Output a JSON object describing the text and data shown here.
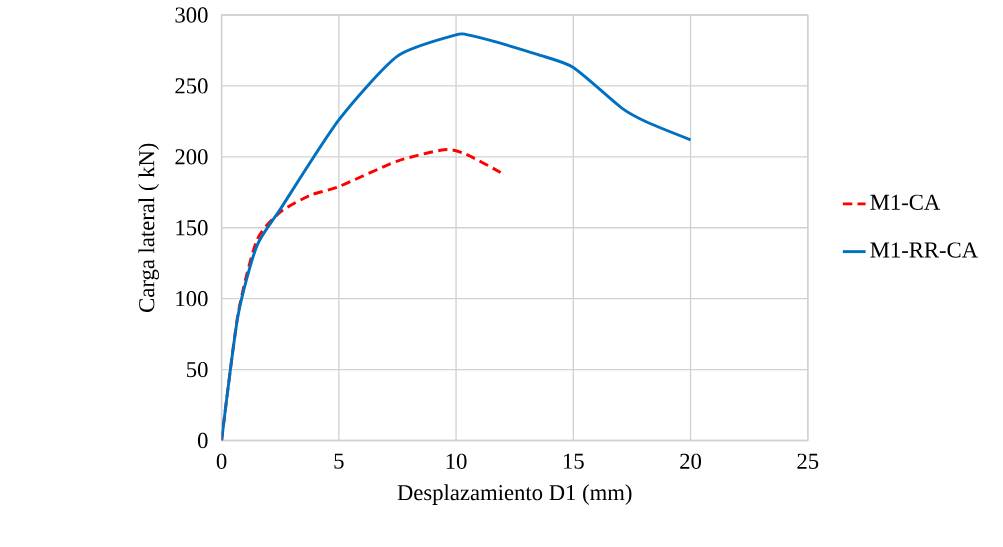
{
  "chart_data": {
    "type": "line",
    "xlabel": "Desplazamiento D1 (mm)",
    "ylabel": "Carga lateral ( kN)",
    "xlim": [
      0,
      25
    ],
    "xticks": [
      0,
      5,
      10,
      15,
      20,
      25
    ],
    "ylim": [
      0,
      300
    ],
    "yticks": [
      0,
      50,
      100,
      150,
      200,
      250,
      300
    ],
    "grid": true,
    "legend": "right",
    "marker": "none",
    "series": [
      {
        "name": "M1-CA",
        "color": "#ff0000",
        "line_style": "dashed",
        "x": [
          0,
          0.7,
          1.5,
          2.5,
          3.8,
          5,
          7.5,
          9.5,
          10.4,
          11.9
        ],
        "values": [
          0,
          89,
          141,
          161,
          173,
          179,
          197,
          205,
          202,
          189
        ]
      },
      {
        "name": "M1-RR-CA",
        "color": "#0070c0",
        "line_style": "solid",
        "x": [
          0,
          0.7,
          1.5,
          2.5,
          5,
          7.5,
          10,
          10.5,
          11.7,
          13.5,
          15,
          17.1,
          18.2,
          20
        ],
        "values": [
          0,
          88,
          137,
          163,
          226,
          271,
          286,
          286,
          281,
          272,
          263,
          234,
          224,
          212
        ]
      }
    ]
  }
}
